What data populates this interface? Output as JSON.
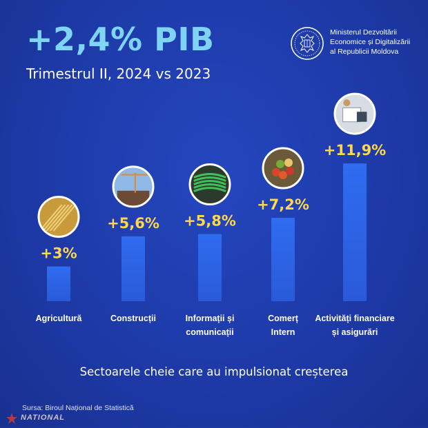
{
  "header": {
    "headline": "+2,4% PIB",
    "subtitle": "Trimestrul II, 2024 vs 2023"
  },
  "ministry": {
    "line1": "Ministerul Dezvoltării",
    "line2": "Economice și Digitalizării",
    "line3": "al Republicii Moldova"
  },
  "chart_data": {
    "type": "bar",
    "categories": [
      [
        "Agricultură"
      ],
      [
        "Construcții"
      ],
      [
        "Informații și",
        "comunicații"
      ],
      [
        "Comerț",
        "Intern"
      ],
      [
        "Activități financiare",
        "și asigurări"
      ]
    ],
    "values": [
      3,
      5.6,
      5.8,
      7.2,
      11.9
    ],
    "data_labels": [
      "+3%",
      "+5,6%",
      "+5,8%",
      "+7,2%",
      "+11,9%"
    ],
    "icons": [
      "wheat-photo-icon",
      "construction-crane-photo-icon",
      "network-cables-photo-icon",
      "vegetables-market-photo-icon",
      "finance-documents-photo-icon"
    ],
    "ylim": [
      0,
      12
    ],
    "grid": false,
    "bar_color": "#2f6cf0",
    "label_color": "#ffd84a"
  },
  "footer": {
    "caption": "Sectoarele cheie care au impulsionat creșterea",
    "source": "Sursa: Biroul Național de Statistică",
    "watermark": "NATIONAL"
  },
  "colors": {
    "background": "#1f3fb0",
    "headline": "#7fd4f4",
    "accent_yellow": "#ffd84a"
  }
}
